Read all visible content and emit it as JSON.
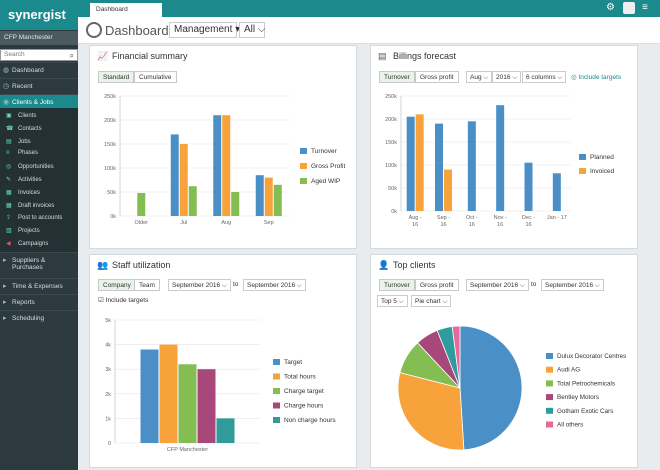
{
  "app": {
    "logo": "synergist",
    "tab": "Dashboard",
    "office": "CFP Manchester",
    "search_placeholder": "Search"
  },
  "header": {
    "title": "Dashboard",
    "view": "Management",
    "filter": "All"
  },
  "nav": {
    "top": [
      {
        "label": "Dashboard",
        "icon": "dashboard-icon"
      },
      {
        "label": "Recent",
        "icon": "recent-icon"
      },
      {
        "label": "Clients & Jobs",
        "icon": "clients-jobs-icon"
      }
    ],
    "sub": [
      "Clients",
      "Contacts",
      "Jobs",
      "Phases",
      "Opportunities",
      "Activities",
      "Invoices",
      "Draft invoices",
      "Post to accounts",
      "Projects",
      "Campaigns"
    ],
    "bottom": [
      "Suppliers &",
      "Purchases",
      "Time & Expenses",
      "Reports",
      "Scheduling"
    ]
  },
  "colors": {
    "blue": "#4b8fc7",
    "orange": "#f7a23a",
    "green": "#84bd52",
    "purple": "#a8487a",
    "teal": "#2f9b9a",
    "pink": "#e9689a",
    "accent": "#1a8a8c"
  },
  "financial": {
    "title": "Financial summary",
    "tabs": [
      "Standard",
      "Cumulative"
    ]
  },
  "billings": {
    "title": "Billings forecast",
    "tabs": [
      "Turnover",
      "Gross profit"
    ],
    "month": "Aug",
    "year": "2016",
    "columns": "6 columns",
    "include": "Include targets"
  },
  "staff": {
    "title": "Staff utilization",
    "tabs": [
      "Company",
      "Team"
    ],
    "from": "September 2016",
    "to_label": "to",
    "to": "September 2016",
    "include": "Include targets"
  },
  "clients": {
    "title": "Top clients",
    "tabs": [
      "Turnover",
      "Gross profit"
    ],
    "from": "September 2016",
    "to_label": "to",
    "to": "September 2016",
    "top": "Top 5",
    "chart": "Pie chart"
  },
  "chart_data": [
    {
      "id": "financial-summary",
      "type": "bar",
      "categories": [
        "Older",
        "Jul",
        "Aug",
        "Sep"
      ],
      "series": [
        {
          "name": "Turnover",
          "color": "#4b8fc7",
          "values": [
            0,
            170,
            210,
            85
          ]
        },
        {
          "name": "Gross Profit",
          "color": "#f7a23a",
          "values": [
            0,
            150,
            210,
            80
          ]
        },
        {
          "name": "Aged WIP",
          "color": "#84bd52",
          "values": [
            48,
            62,
            50,
            65
          ]
        }
      ],
      "yticks": [
        "0k",
        "50k",
        "100k",
        "150k",
        "200k",
        "250k"
      ],
      "ylim": [
        0,
        250
      ]
    },
    {
      "id": "billings-forecast",
      "type": "bar",
      "categories": [
        "Aug -\n16",
        "Sep -\n16",
        "Oct -\n16",
        "Nov -\n16",
        "Dec -\n16",
        "Jan - 17"
      ],
      "series": [
        {
          "name": "Planned",
          "color": "#4b8fc7",
          "values": [
            205,
            190,
            195,
            230,
            105,
            82
          ]
        },
        {
          "name": "Invoiced",
          "color": "#f7a23a",
          "values": [
            210,
            90,
            0,
            0,
            0,
            0
          ]
        }
      ],
      "yticks": [
        "0k",
        "50k",
        "100k",
        "150k",
        "200k",
        "250k"
      ],
      "ylim": [
        0,
        250
      ]
    },
    {
      "id": "staff-utilization",
      "type": "bar",
      "categories": [
        "CFP Manchester"
      ],
      "series": [
        {
          "name": "Target",
          "color": "#4b8fc7",
          "values": [
            3.8
          ]
        },
        {
          "name": "Total hours",
          "color": "#f7a23a",
          "values": [
            4.0
          ]
        },
        {
          "name": "Charge target",
          "color": "#84bd52",
          "values": [
            3.2
          ]
        },
        {
          "name": "Charge hours",
          "color": "#a8487a",
          "values": [
            3.0
          ]
        },
        {
          "name": "Non charge hours",
          "color": "#2f9b9a",
          "values": [
            1.0
          ]
        }
      ],
      "yticks": [
        "0",
        "1k",
        "2k",
        "3k",
        "4k",
        "5k"
      ],
      "ylim": [
        0,
        5
      ]
    },
    {
      "id": "top-clients",
      "type": "pie",
      "series": [
        {
          "name": "Dulux Decorator Centres",
          "color": "#4b8fc7",
          "value": 49
        },
        {
          "name": "Audi AG",
          "color": "#f7a23a",
          "value": 30
        },
        {
          "name": "Total Petrochemicals",
          "color": "#84bd52",
          "value": 9
        },
        {
          "name": "Bentley Motors",
          "color": "#a8487a",
          "value": 6
        },
        {
          "name": "Gotham Exotic Cars",
          "color": "#2f9b9a",
          "value": 4
        },
        {
          "name": "All others",
          "color": "#e9689a",
          "value": 2
        }
      ]
    }
  ]
}
